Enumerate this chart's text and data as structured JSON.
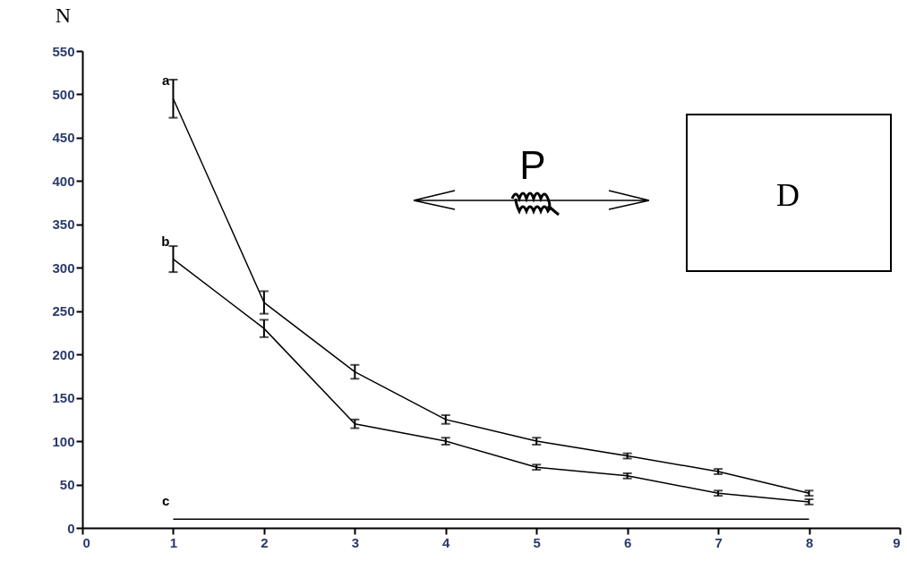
{
  "chart_data": {
    "type": "line",
    "ylabel": "N",
    "xlim": [
      0,
      9
    ],
    "xticks": [
      0,
      1,
      2,
      3,
      4,
      5,
      6,
      7,
      8,
      9
    ],
    "ylim": [
      0,
      550
    ],
    "yticks": [
      0,
      50,
      100,
      150,
      200,
      250,
      300,
      350,
      400,
      450,
      500,
      550
    ],
    "x": [
      1,
      2,
      3,
      4,
      5,
      6,
      7,
      8
    ],
    "grid": false,
    "marker": "none",
    "line_style": "solid",
    "series": [
      {
        "name": "a",
        "color": "#000000",
        "values": [
          495,
          260,
          180,
          125,
          100,
          83,
          65,
          40
        ],
        "errors": [
          22,
          13,
          8,
          5,
          4,
          3,
          3,
          3
        ]
      },
      {
        "name": "b",
        "color": "#000000",
        "values": [
          310,
          230,
          120,
          100,
          70,
          60,
          40,
          30
        ],
        "errors": [
          15,
          10,
          5,
          4,
          3,
          3,
          3,
          3
        ]
      },
      {
        "name": "c",
        "color": "#000000",
        "values": [
          10,
          10,
          10,
          10,
          10,
          10,
          10,
          10
        ],
        "errors": [
          null,
          null,
          null,
          null,
          null,
          null,
          null,
          null
        ]
      }
    ],
    "annotations": [
      "P",
      "D"
    ]
  }
}
